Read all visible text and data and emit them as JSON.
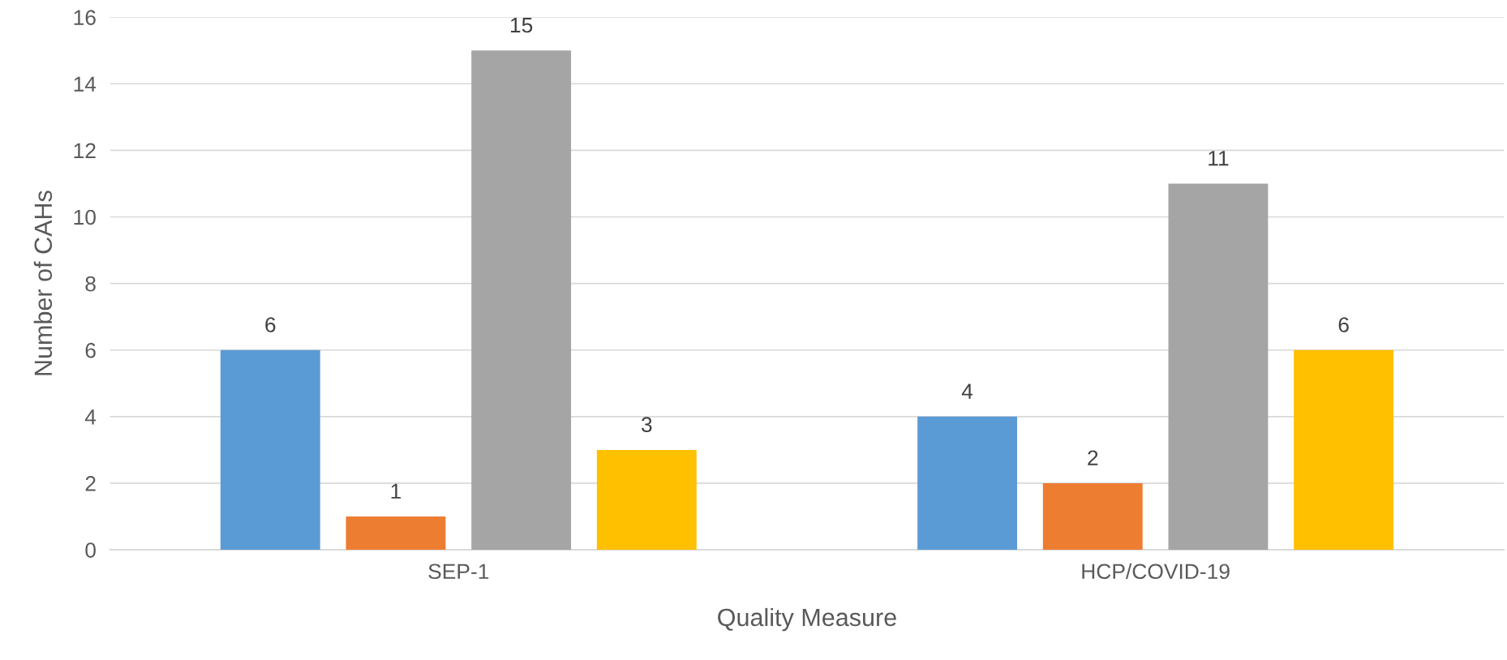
{
  "chart_data": {
    "type": "bar",
    "xlabel": "Quality Measure",
    "ylabel": "Number of CAHs",
    "categories": [
      "SEP-1",
      "HCP/COVID-19"
    ],
    "series": [
      {
        "color": "#5b9bd5",
        "values": [
          6,
          4
        ]
      },
      {
        "color": "#ed7d31",
        "values": [
          1,
          2
        ]
      },
      {
        "color": "#a5a5a5",
        "values": [
          15,
          11
        ]
      },
      {
        "color": "#ffc000",
        "values": [
          3,
          6
        ]
      }
    ],
    "ylim": [
      0,
      16
    ],
    "yticks": [
      0,
      2,
      4,
      6,
      8,
      10,
      12,
      14,
      16
    ],
    "grid": "y",
    "data_labels": true,
    "legend": false
  }
}
